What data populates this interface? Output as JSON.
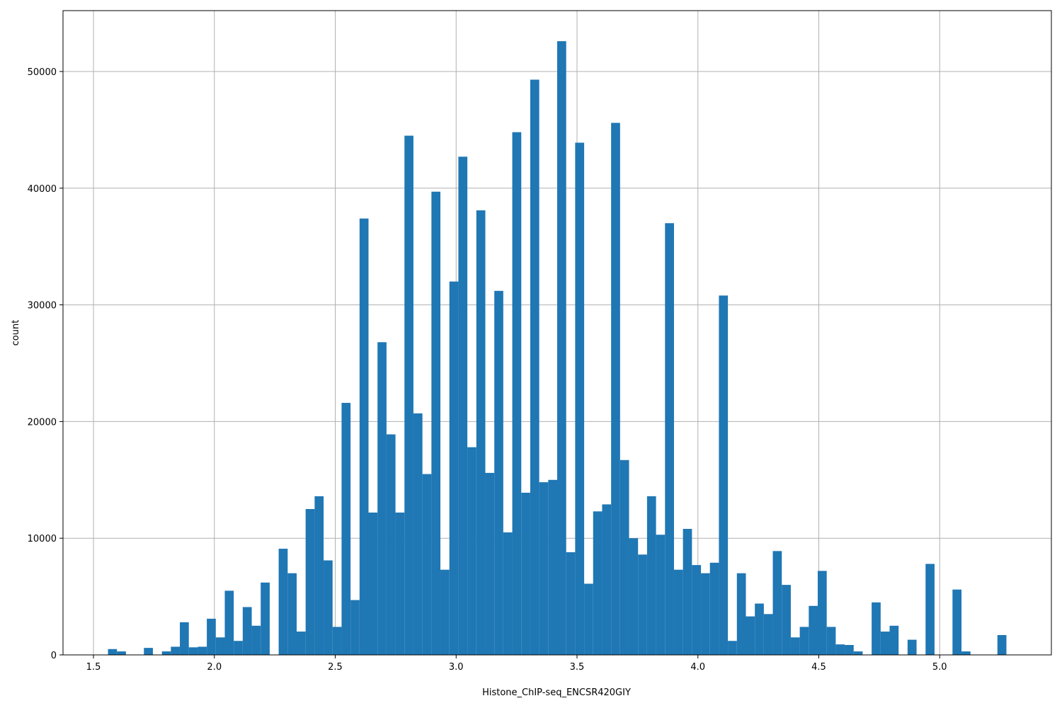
{
  "chart_data": {
    "type": "histogram",
    "xlabel": "Histone_ChIP-seq_ENCSR420GIY",
    "ylabel": "count",
    "color": "#1f77b4",
    "grid": true,
    "bins": [
      1.56,
      1.5972,
      1.6343,
      1.6715,
      1.7086,
      1.7458,
      1.783,
      1.8201,
      1.8573,
      1.8944,
      1.9316,
      1.9688,
      2.0059,
      2.0431,
      2.0802,
      2.1174,
      2.1546,
      2.1917,
      2.2289,
      2.266,
      2.3032,
      2.3404,
      2.3775,
      2.4147,
      2.4518,
      2.489,
      2.5262,
      2.5633,
      2.6005,
      2.6376,
      2.6748,
      2.712,
      2.7491,
      2.7863,
      2.8234,
      2.8606,
      2.8978,
      2.9349,
      2.9721,
      3.0092,
      3.0464,
      3.0836,
      3.1207,
      3.1579,
      3.195,
      3.2322,
      3.2694,
      3.3065,
      3.3437,
      3.3808,
      3.418,
      3.4552,
      3.4923,
      3.5295,
      3.5666,
      3.6038,
      3.641,
      3.6781,
      3.7153,
      3.7524,
      3.7896,
      3.8268,
      3.8639,
      3.9011,
      3.9382,
      3.9754,
      4.0126,
      4.0497,
      4.0869,
      4.124,
      4.1612,
      4.1984,
      4.2355,
      4.2727,
      4.3098,
      4.347,
      4.3842,
      4.4213,
      4.4585,
      4.4956,
      4.5328,
      4.57,
      4.6071,
      4.6443,
      4.6814,
      4.7186,
      4.7558,
      4.7929,
      4.8301,
      4.8672,
      4.9044,
      4.9416,
      4.9787,
      5.0159,
      5.053,
      5.0902,
      5.1274,
      5.1645,
      5.2017,
      5.2388,
      5.276
    ],
    "counts": [
      500,
      300,
      0,
      0,
      600,
      0,
      300,
      700,
      2800,
      650,
      700,
      3100,
      1500,
      5500,
      1200,
      4100,
      2500,
      6200,
      0,
      9100,
      7000,
      2000,
      12500,
      13600,
      8100,
      2400,
      21600,
      4700,
      37400,
      12200,
      26800,
      18900,
      12200,
      44500,
      20700,
      15500,
      39700,
      7300,
      32000,
      42700,
      17800,
      38100,
      15600,
      31200,
      10500,
      44800,
      13900,
      49300,
      14800,
      15000,
      52600,
      8800,
      43900,
      6100,
      12300,
      12900,
      45600,
      16700,
      10000,
      8600,
      13600,
      10300,
      37000,
      7300,
      10800,
      7700,
      7000,
      7900,
      30800,
      1200,
      7000,
      3300,
      4400,
      3500,
      8900,
      6000,
      1500,
      2400,
      4200,
      7200,
      2400,
      900,
      850,
      300,
      0,
      4500,
      2000,
      2500,
      0,
      1300,
      0,
      7800,
      0,
      0,
      5600,
      300,
      0,
      0,
      0,
      1700
    ],
    "xlim": [
      1.374,
      5.462
    ],
    "ylim": [
      0,
      55218
    ],
    "xticks": [
      1.5,
      {
        "value": 2,
        "label": "2.0"
      },
      2.5,
      {
        "value": 3,
        "label": "3.0"
      },
      3.5,
      {
        "value": 4,
        "label": "4.0"
      },
      4.5,
      {
        "value": 5,
        "label": "5.0"
      }
    ],
    "yticks": [
      0,
      10000,
      20000,
      30000,
      40000,
      50000
    ]
  }
}
